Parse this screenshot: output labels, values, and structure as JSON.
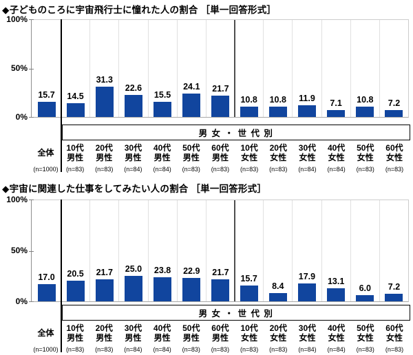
{
  "page": {
    "background": "#FFFFFF",
    "text_color": "#000000"
  },
  "chart_data": [
    {
      "type": "bar",
      "title": "◆子どものころに宇宙飛行士に憧れた人の割合 ［単一回答形式］",
      "xlabel": "",
      "ylabel": "",
      "ylim": [
        0,
        100
      ],
      "y_tick_labels": [
        "100%",
        "50%",
        "0%"
      ],
      "grid": "vertical category separators only",
      "legend": "none",
      "bar_value_labels": true,
      "bar_color": "#11459E",
      "group_band_label": "男 女 ・ 世 代 別",
      "categories": [
        "全体",
        "10代男性",
        "20代男性",
        "30代男性",
        "40代男性",
        "50代男性",
        "60代男性",
        "10代女性",
        "20代女性",
        "30代女性",
        "40代女性",
        "50代女性",
        "60代女性"
      ],
      "label_lines": [
        [
          "全体"
        ],
        [
          "10代",
          "男性"
        ],
        [
          "20代",
          "男性"
        ],
        [
          "30代",
          "男性"
        ],
        [
          "40代",
          "男性"
        ],
        [
          "50代",
          "男性"
        ],
        [
          "60代",
          "男性"
        ],
        [
          "10代",
          "女性"
        ],
        [
          "20代",
          "女性"
        ],
        [
          "30代",
          "女性"
        ],
        [
          "40代",
          "女性"
        ],
        [
          "50代",
          "女性"
        ],
        [
          "60代",
          "女性"
        ]
      ],
      "n_labels": [
        "(n=1000)",
        "(n=83)",
        "(n=83)",
        "(n=84)",
        "(n=84)",
        "(n=83)",
        "(n=83)",
        "(n=83)",
        "(n=83)",
        "(n=84)",
        "(n=84)",
        "(n=83)",
        "(n=83)"
      ],
      "values": [
        15.7,
        14.5,
        31.3,
        22.6,
        15.5,
        24.1,
        21.7,
        10.8,
        10.8,
        11.9,
        7.1,
        10.8,
        7.2
      ]
    },
    {
      "type": "bar",
      "title": "◆宇宙に関連した仕事をしてみたい人の割合 ［単一回答形式］",
      "xlabel": "",
      "ylabel": "",
      "ylim": [
        0,
        100
      ],
      "y_tick_labels": [
        "100%",
        "50%",
        "0%"
      ],
      "grid": "vertical category separators only",
      "legend": "none",
      "bar_value_labels": true,
      "bar_color": "#11459E",
      "group_band_label": "男 女 ・ 世 代 別",
      "categories": [
        "全体",
        "10代男性",
        "20代男性",
        "30代男性",
        "40代男性",
        "50代男性",
        "60代男性",
        "10代女性",
        "20代女性",
        "30代女性",
        "40代女性",
        "50代女性",
        "60代女性"
      ],
      "label_lines": [
        [
          "全体"
        ],
        [
          "10代",
          "男性"
        ],
        [
          "20代",
          "男性"
        ],
        [
          "30代",
          "男性"
        ],
        [
          "40代",
          "男性"
        ],
        [
          "50代",
          "男性"
        ],
        [
          "60代",
          "男性"
        ],
        [
          "10代",
          "女性"
        ],
        [
          "20代",
          "女性"
        ],
        [
          "30代",
          "女性"
        ],
        [
          "40代",
          "女性"
        ],
        [
          "50代",
          "女性"
        ],
        [
          "60代",
          "女性"
        ]
      ],
      "n_labels": [
        "(n=1000)",
        "(n=83)",
        "(n=83)",
        "(n=84)",
        "(n=84)",
        "(n=83)",
        "(n=83)",
        "(n=83)",
        "(n=83)",
        "(n=84)",
        "(n=84)",
        "(n=83)",
        "(n=83)"
      ],
      "values": [
        17.0,
        20.5,
        21.7,
        25.0,
        23.8,
        22.9,
        21.7,
        15.7,
        8.4,
        17.9,
        13.1,
        6.0,
        7.2
      ]
    }
  ]
}
